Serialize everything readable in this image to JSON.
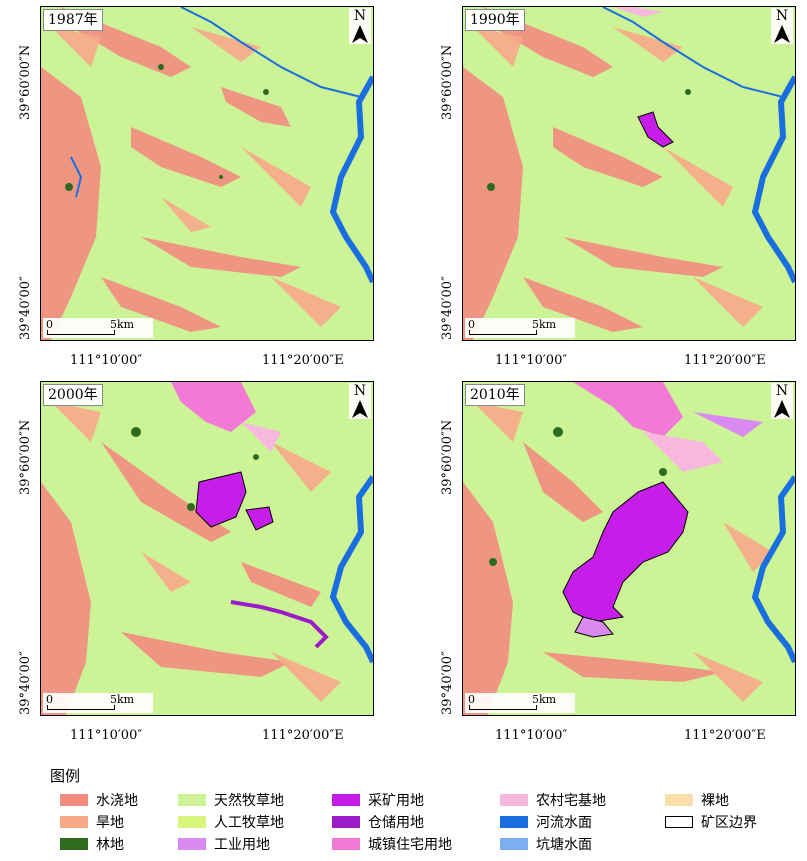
{
  "panels": [
    {
      "year": "1987年",
      "north": "N",
      "scale_zero": "0",
      "scale_km": "5km",
      "lat_top": "39°60′00″N",
      "lat_bottom": "39°40′00″",
      "lon_left": "111°10′00″",
      "lon_right": "111°20′00″E"
    },
    {
      "year": "1990年",
      "north": "N",
      "scale_zero": "0",
      "scale_km": "5km",
      "lat_top": "39°60′00″N",
      "lat_bottom": "39°40′00″",
      "lon_left": "111°10′00″",
      "lon_right": "111°20′00″E"
    },
    {
      "year": "2000年",
      "north": "N",
      "scale_zero": "0",
      "scale_km": "5km",
      "lat_top": "39°60′00″N",
      "lat_bottom": "39°40′00″",
      "lon_left": "111°10′00″",
      "lon_right": "111°20′00″E"
    },
    {
      "year": "2010年",
      "north": "N",
      "scale_zero": "0",
      "scale_km": "5km",
      "lat_top": "39°60′00″N",
      "lat_bottom": "39°40′00″",
      "lon_left": "111°10′00″",
      "lon_right": "111°20′00″E"
    }
  ],
  "legend": {
    "title": "图例",
    "items": [
      {
        "label": "水浇地",
        "color": "#f28c80"
      },
      {
        "label": "旱地",
        "color": "#f7a98a"
      },
      {
        "label": "林地",
        "color": "#2e6b1e"
      },
      {
        "label": "天然牧草地",
        "color": "#cdf397"
      },
      {
        "label": "人工牧草地",
        "color": "#d9f57c"
      },
      {
        "label": "工业用地",
        "color": "#d88af0"
      },
      {
        "label": "采矿用地",
        "color": "#c61ee8"
      },
      {
        "label": "仓储用地",
        "color": "#9a1bc7"
      },
      {
        "label": "城镇住宅用地",
        "color": "#f27ad6"
      },
      {
        "label": "农村宅基地",
        "color": "#f7b8de"
      },
      {
        "label": "河流水面",
        "color": "#1a6fe0"
      },
      {
        "label": "坑塘水面",
        "color": "#7cb0f0"
      },
      {
        "label": "裸地",
        "color": "#f7deaa"
      },
      {
        "label": "矿区边界",
        "color": "#ffffff"
      }
    ]
  }
}
